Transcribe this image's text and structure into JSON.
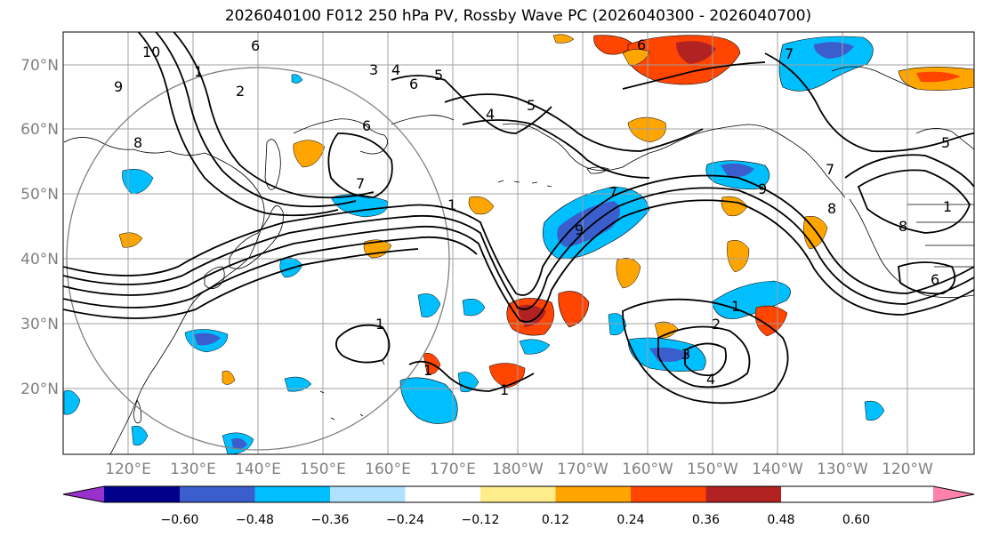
{
  "title": "2026040100 F012 250 hPa PV, Rossby Wave PC (2026040300 - 2026040700)",
  "map": {
    "lat_labels": [
      "70°N",
      "60°N",
      "50°N",
      "40°N",
      "30°N",
      "20°N"
    ],
    "lon_labels": [
      "120°E",
      "130°E",
      "140°E",
      "150°E",
      "160°E",
      "170°E",
      "180°W",
      "170°W",
      "160°W",
      "150°W",
      "140°W",
      "130°W",
      "120°W"
    ],
    "contour_labels": [
      {
        "text": "10"
      },
      {
        "text": "9"
      },
      {
        "text": "8"
      },
      {
        "text": "6"
      },
      {
        "text": "1"
      },
      {
        "text": "2"
      },
      {
        "text": "3"
      },
      {
        "text": "4"
      },
      {
        "text": "5"
      },
      {
        "text": "6"
      },
      {
        "text": "6"
      },
      {
        "text": "4"
      },
      {
        "text": "5"
      },
      {
        "text": "6"
      },
      {
        "text": "7"
      },
      {
        "text": "1"
      },
      {
        "text": "7"
      },
      {
        "text": "9"
      },
      {
        "text": "8"
      },
      {
        "text": "5"
      },
      {
        "text": "7"
      },
      {
        "text": "1"
      },
      {
        "text": "2"
      },
      {
        "text": "3"
      },
      {
        "text": "4"
      },
      {
        "text": "1"
      },
      {
        "text": "1"
      },
      {
        "text": "1"
      },
      {
        "text": "1"
      },
      {
        "text": "6"
      },
      {
        "text": "8"
      },
      {
        "text": "9"
      },
      {
        "text": "7"
      }
    ]
  },
  "colorbar": {
    "ticks": [
      "−0.60",
      "−0.48",
      "−0.36",
      "−0.24",
      "−0.12",
      "0.12",
      "0.24",
      "0.36",
      "0.48",
      "0.60"
    ],
    "colors": [
      "#9932cc",
      "#00008b",
      "#3a5fcd",
      "#00bfff",
      "#b0e2ff",
      "#ffffff",
      "#ffec8b",
      "#ffa500",
      "#ff4500",
      "#b22222",
      "#ff82ab"
    ]
  }
}
